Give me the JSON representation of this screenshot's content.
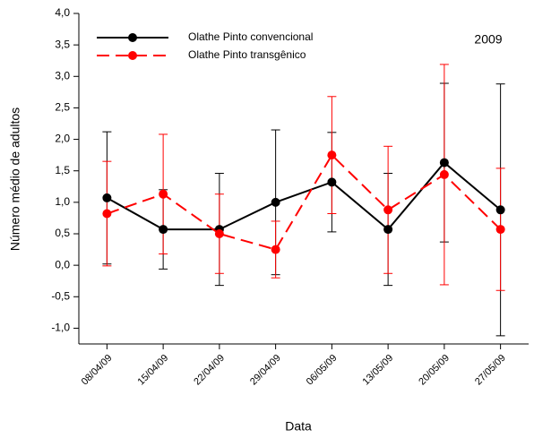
{
  "chart_data": {
    "type": "line",
    "x_label": "Data",
    "y_label": "Número médio de adultos",
    "annotation": "2009",
    "categories": [
      "08/04/09",
      "15/04/09",
      "22/04/09",
      "29/04/09",
      "06/05/09",
      "13/05/09",
      "20/05/09",
      "27/05/09"
    ],
    "series": [
      {
        "name": "Olathe Pinto convencional",
        "color": "#000000",
        "dash": false,
        "values": [
          1.07,
          0.57,
          0.57,
          1.0,
          1.32,
          0.57,
          1.63,
          0.88
        ],
        "errors": [
          1.05,
          0.63,
          0.89,
          1.15,
          0.79,
          0.89,
          1.26,
          2.0
        ]
      },
      {
        "name": "Olathe Pinto transgênico",
        "color": "#ff0000",
        "dash": true,
        "values": [
          0.82,
          1.13,
          0.5,
          0.25,
          1.75,
          0.88,
          1.44,
          0.57
        ],
        "errors": [
          0.83,
          0.95,
          0.63,
          0.45,
          0.93,
          1.01,
          1.75,
          0.97
        ]
      }
    ],
    "ylim": [
      -1.25,
      4.0
    ],
    "yticks": [
      {
        "value": -1.0,
        "label": "-1,0"
      },
      {
        "value": -0.5,
        "label": "-0,5"
      },
      {
        "value": 0.0,
        "label": "0,0"
      },
      {
        "value": 0.5,
        "label": "0,5"
      },
      {
        "value": 1.0,
        "label": "1,0"
      },
      {
        "value": 1.5,
        "label": "1,5"
      },
      {
        "value": 2.0,
        "label": "2,0"
      },
      {
        "value": 2.5,
        "label": "2,5"
      },
      {
        "value": 3.0,
        "label": "3,0"
      },
      {
        "value": 3.5,
        "label": "3,5"
      },
      {
        "value": 4.0,
        "label": "4,0"
      }
    ],
    "legend": "top-left",
    "grid": false
  }
}
